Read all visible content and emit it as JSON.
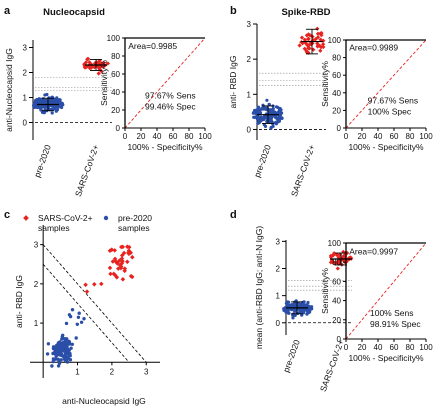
{
  "colors": {
    "pre": "#2b4fa8",
    "sars": "#e8231f",
    "axis": "#000000",
    "diag": "#e8231f",
    "thr": "#8c8c8c"
  },
  "chart_data": [
    {
      "id": "a",
      "panel_letter": "a",
      "type": "scatter",
      "title": "Nucleocapsid",
      "ylabel": "anti-Nucleocapsid IgG",
      "yticks": [
        "0",
        "1",
        "2",
        "3"
      ],
      "ylim": [
        -0.7,
        3.3
      ],
      "categories": [
        "pre-2020",
        "SARS-CoV-2+"
      ],
      "series": [
        {
          "category": "pre-2020",
          "n": 140,
          "mean": 0.72,
          "sd": 0.25,
          "min": -0.1,
          "max": 1.55
        },
        {
          "category": "SARS-CoV-2+",
          "n": 45,
          "mean": 2.3,
          "sd": 0.22,
          "min": 1.55,
          "max": 2.8
        }
      ],
      "thresholds": [
        1.28,
        1.4,
        1.8
      ]
    },
    {
      "id": "a-roc",
      "type": "line",
      "ylabel": "Sensitivity%",
      "xlabel": "100% - Specificity%",
      "ticks": [
        "0",
        "20",
        "40",
        "60",
        "80",
        "100"
      ],
      "auc_text": "Area=0.9985",
      "sens_text": "97.67% Sens",
      "spec_text": "99.46% Spec"
    },
    {
      "id": "b",
      "panel_letter": "b",
      "type": "scatter",
      "title": "Spike-RBD",
      "ylabel": "anti- RBD IgG",
      "yticks": [
        "0",
        "1",
        "2",
        "3"
      ],
      "ylim": [
        -0.3,
        3.0
      ],
      "categories": [
        "pre-2020",
        "SARS-CoV-2+"
      ],
      "series": [
        {
          "category": "pre-2020",
          "n": 140,
          "mean": 0.42,
          "sd": 0.25,
          "min": -0.05,
          "max": 1.35
        },
        {
          "category": "SARS-CoV-2+",
          "n": 45,
          "mean": 2.5,
          "sd": 0.35,
          "min": 1.2,
          "max": 2.95
        }
      ],
      "thresholds": [
        1.25,
        1.4,
        1.6
      ]
    },
    {
      "id": "b-roc",
      "type": "line",
      "ylabel": "Sensitivity%",
      "xlabel": "100% - Specificity%",
      "ticks": [
        "0",
        "20",
        "40",
        "60",
        "80",
        "100"
      ],
      "auc_text": "Area=0.9989",
      "sens_text": "97.67% Sens",
      "spec_text": "100% Spec"
    },
    {
      "id": "c",
      "panel_letter": "c",
      "type": "scatter",
      "xlabel": "anti-Nucleocapsid IgG",
      "ylabel": "anti- RBD IgG",
      "xticks": [
        "1",
        "2",
        "3"
      ],
      "yticks": [
        "1",
        "2",
        "3"
      ],
      "xlim": [
        -0.15,
        3.4
      ],
      "ylim": [
        -0.4,
        3.5
      ],
      "legend": [
        {
          "label_1": "SARS-CoV-2+",
          "label_2": "samples",
          "color": "#e8231f"
        },
        {
          "label_1": "pre-2020",
          "label_2": "samples",
          "color": "#2b4fa8"
        }
      ],
      "cutoff_lines": [
        2.5,
        3.0
      ]
    },
    {
      "id": "d",
      "panel_letter": "d",
      "type": "scatter",
      "ylabel": "mean (anti-RBD IgG; anti-N IgG)",
      "yticks": [
        "0",
        "1",
        "2",
        "3"
      ],
      "ylim": [
        -0.45,
        3.05
      ],
      "categories": [
        "pre-2020",
        "SARS-CoV-2+"
      ],
      "series": [
        {
          "category": "pre-2020",
          "n": 140,
          "mean": 0.55,
          "sd": 0.22,
          "min": -0.05,
          "max": 1.2
        },
        {
          "category": "SARS-CoV-2+",
          "n": 45,
          "mean": 2.35,
          "sd": 0.22,
          "min": 1.9,
          "max": 2.75
        }
      ],
      "thresholds": [
        1.2,
        1.35,
        1.55
      ]
    },
    {
      "id": "d-roc",
      "type": "line",
      "ylabel": "Sensitivity%",
      "xlabel": "100% - Specificity%",
      "ticks": [
        "0",
        "20",
        "40",
        "60",
        "80",
        "100"
      ],
      "auc_text": "Area=0.9997",
      "sens_text": "100% Sens",
      "spec_text": "98.91% Spec"
    }
  ]
}
